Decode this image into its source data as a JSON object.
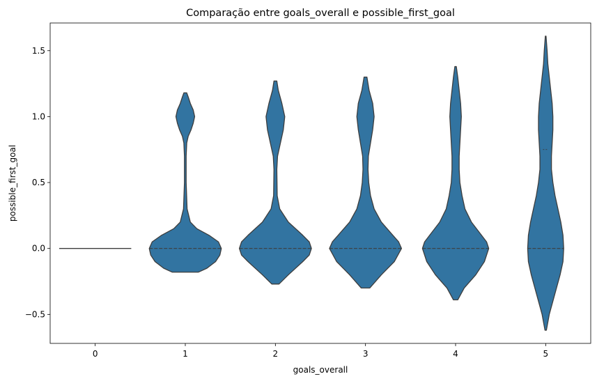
{
  "chart_data": {
    "type": "violin",
    "title": "Comparação entre goals_overall e possible_first_goal",
    "xlabel": "goals_overall",
    "ylabel": "possible_first_goal",
    "categories": [
      "0",
      "1",
      "2",
      "3",
      "4",
      "5"
    ],
    "ylim": [
      -0.72,
      1.71
    ],
    "yticks": [
      -0.5,
      0.0,
      0.5,
      1.0,
      1.5
    ],
    "ytick_labels": [
      "−0.5",
      "0.0",
      "0.5",
      "1.0",
      "1.5"
    ],
    "grid": false,
    "legend": "none",
    "colors": {
      "fill": "#3274a1",
      "edge": "#3d3d3d"
    },
    "violins": [
      {
        "category": "0",
        "min": 0.0,
        "max": 0.0,
        "median": 0.0,
        "degenerate": true
      },
      {
        "category": "1",
        "min": -0.18,
        "max": 1.18,
        "median": 0.0,
        "profile": [
          [
            -0.18,
            0.18
          ],
          [
            -0.15,
            0.3
          ],
          [
            -0.1,
            0.42
          ],
          [
            -0.05,
            0.48
          ],
          [
            0.0,
            0.5
          ],
          [
            0.05,
            0.46
          ],
          [
            0.1,
            0.33
          ],
          [
            0.15,
            0.16
          ],
          [
            0.2,
            0.07
          ],
          [
            0.3,
            0.025
          ],
          [
            0.5,
            0.012
          ],
          [
            0.7,
            0.012
          ],
          [
            0.8,
            0.02
          ],
          [
            0.85,
            0.04
          ],
          [
            0.9,
            0.08
          ],
          [
            0.95,
            0.11
          ],
          [
            1.0,
            0.13
          ],
          [
            1.05,
            0.11
          ],
          [
            1.1,
            0.07
          ],
          [
            1.15,
            0.04
          ],
          [
            1.18,
            0.02
          ]
        ]
      },
      {
        "category": "2",
        "min": -0.27,
        "max": 1.27,
        "median": 0.0,
        "profile": [
          [
            -0.27,
            0.05
          ],
          [
            -0.2,
            0.18
          ],
          [
            -0.1,
            0.38
          ],
          [
            -0.05,
            0.47
          ],
          [
            0.0,
            0.5
          ],
          [
            0.05,
            0.47
          ],
          [
            0.1,
            0.38
          ],
          [
            0.2,
            0.18
          ],
          [
            0.3,
            0.06
          ],
          [
            0.4,
            0.025
          ],
          [
            0.6,
            0.02
          ],
          [
            0.7,
            0.03
          ],
          [
            0.8,
            0.07
          ],
          [
            0.9,
            0.11
          ],
          [
            1.0,
            0.13
          ],
          [
            1.1,
            0.09
          ],
          [
            1.2,
            0.04
          ],
          [
            1.27,
            0.02
          ]
        ]
      },
      {
        "category": "3",
        "min": -0.3,
        "max": 1.3,
        "median": 0.0,
        "profile": [
          [
            -0.3,
            0.06
          ],
          [
            -0.2,
            0.22
          ],
          [
            -0.1,
            0.4
          ],
          [
            0.0,
            0.5
          ],
          [
            0.05,
            0.46
          ],
          [
            0.1,
            0.38
          ],
          [
            0.2,
            0.22
          ],
          [
            0.3,
            0.12
          ],
          [
            0.4,
            0.07
          ],
          [
            0.5,
            0.045
          ],
          [
            0.6,
            0.035
          ],
          [
            0.7,
            0.04
          ],
          [
            0.8,
            0.07
          ],
          [
            0.9,
            0.1
          ],
          [
            1.0,
            0.12
          ],
          [
            1.1,
            0.1
          ],
          [
            1.2,
            0.05
          ],
          [
            1.3,
            0.02
          ]
        ]
      },
      {
        "category": "4",
        "min": -0.39,
        "max": 1.38,
        "median": 0.0,
        "profile": [
          [
            -0.39,
            0.03
          ],
          [
            -0.3,
            0.12
          ],
          [
            -0.2,
            0.28
          ],
          [
            -0.1,
            0.4
          ],
          [
            0.0,
            0.46
          ],
          [
            0.05,
            0.43
          ],
          [
            0.1,
            0.36
          ],
          [
            0.2,
            0.22
          ],
          [
            0.3,
            0.13
          ],
          [
            0.4,
            0.09
          ],
          [
            0.5,
            0.06
          ],
          [
            0.6,
            0.05
          ],
          [
            0.7,
            0.05
          ],
          [
            0.8,
            0.06
          ],
          [
            0.9,
            0.07
          ],
          [
            1.0,
            0.08
          ],
          [
            1.1,
            0.07
          ],
          [
            1.2,
            0.05
          ],
          [
            1.3,
            0.03
          ],
          [
            1.38,
            0.01
          ]
        ]
      },
      {
        "category": "5",
        "min": -0.62,
        "max": 1.61,
        "median": 0.0,
        "q3": 0.75,
        "profile": [
          [
            -0.62,
            0.01
          ],
          [
            -0.5,
            0.05
          ],
          [
            -0.4,
            0.1
          ],
          [
            -0.3,
            0.15
          ],
          [
            -0.2,
            0.2
          ],
          [
            -0.1,
            0.24
          ],
          [
            0.0,
            0.25
          ],
          [
            0.1,
            0.24
          ],
          [
            0.2,
            0.21
          ],
          [
            0.3,
            0.17
          ],
          [
            0.4,
            0.13
          ],
          [
            0.5,
            0.1
          ],
          [
            0.6,
            0.08
          ],
          [
            0.7,
            0.08
          ],
          [
            0.8,
            0.09
          ],
          [
            0.9,
            0.1
          ],
          [
            1.0,
            0.1
          ],
          [
            1.1,
            0.09
          ],
          [
            1.2,
            0.07
          ],
          [
            1.3,
            0.05
          ],
          [
            1.4,
            0.03
          ],
          [
            1.5,
            0.02
          ],
          [
            1.61,
            0.005
          ]
        ]
      }
    ]
  }
}
